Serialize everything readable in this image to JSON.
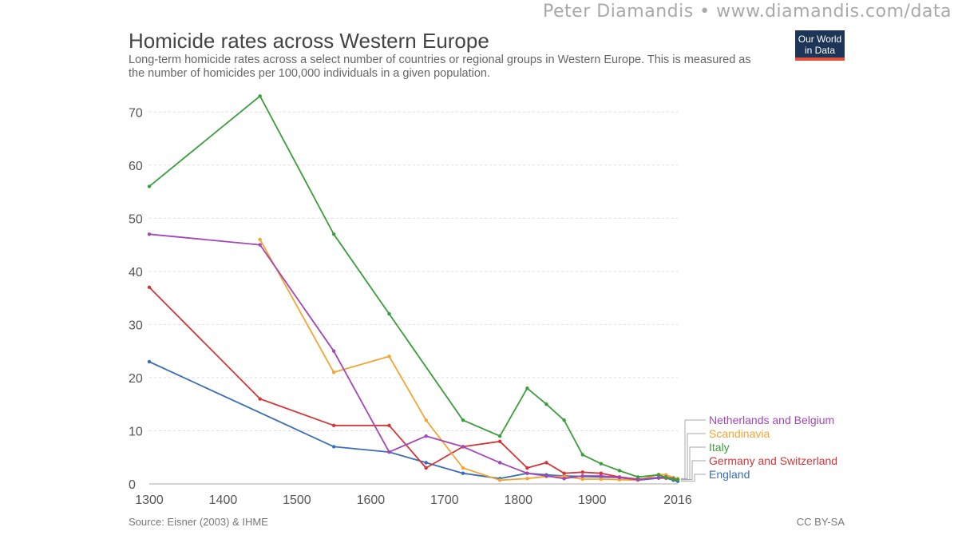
{
  "watermark": "Peter Diamandis  •  www.diamandis.com/data",
  "header": {
    "title": "Homicide rates across Western Europe",
    "subtitle": "Long-term homicide rates across a select number of countries or regional groups in Western Europe. This is measured as the number of homicides per 100,000 individuals in a given population.",
    "logo_line1": "Our World",
    "logo_line2": "in Data"
  },
  "footer": {
    "source": "Source: Eisner (2003) & IHME",
    "license": "CC BY-SA"
  },
  "chart_data": {
    "type": "line",
    "title": "Homicide rates across Western Europe",
    "xlabel": "",
    "ylabel": "",
    "xlim": [
      1300,
      2016
    ],
    "ylim": [
      0,
      75
    ],
    "x_ticks": [
      1300,
      1400,
      1500,
      1600,
      1700,
      1800,
      1900,
      2016
    ],
    "y_ticks": [
      0,
      10,
      20,
      30,
      40,
      50,
      60,
      70
    ],
    "grid": "horizontal dashed",
    "legend": "right, end-of-line labels",
    "series": [
      {
        "name": "Netherlands and Belgium",
        "color": "#a346b8",
        "x": [
          1300,
          1450,
          1550,
          1625,
          1675,
          1725,
          1775,
          1812,
          1838,
          1862,
          1887,
          1912,
          1937,
          1962,
          1990,
          2000,
          2010,
          2016
        ],
        "y": [
          47,
          45,
          25,
          6,
          9,
          7,
          4,
          2,
          1.5,
          1,
          1.5,
          1.5,
          1.2,
          0.8,
          1.2,
          1.3,
          1,
          0.8
        ]
      },
      {
        "name": "Scandinavia",
        "color": "#f2a532",
        "x": [
          1450,
          1550,
          1625,
          1675,
          1725,
          1775,
          1812,
          1838,
          1862,
          1887,
          1912,
          1937,
          1962,
          1990,
          2000,
          2010,
          2016
        ],
        "y": [
          46,
          21,
          24,
          12,
          3,
          0.7,
          1,
          1.4,
          1.4,
          0.9,
          0.9,
          0.8,
          0.7,
          1.8,
          1.7,
          1.2,
          1
        ]
      },
      {
        "name": "Italy",
        "color": "#3a9e3a",
        "x": [
          1300,
          1450,
          1550,
          1625,
          1725,
          1775,
          1812,
          1838,
          1862,
          1887,
          1912,
          1937,
          1962,
          1990,
          2000,
          2010,
          2016
        ],
        "y": [
          56,
          73,
          47,
          32,
          12,
          9,
          18,
          15,
          12,
          5.5,
          3.8,
          2.5,
          1.3,
          1.7,
          1.2,
          0.9,
          0.8
        ]
      },
      {
        "name": "Germany and Switzerland",
        "color": "#d23638",
        "x": [
          1300,
          1450,
          1550,
          1625,
          1675,
          1725,
          1775,
          1812,
          1838,
          1862,
          1887,
          1912,
          1937,
          1962,
          1990,
          2000,
          2010,
          2016
        ],
        "y": [
          37,
          16,
          11,
          11,
          3,
          7,
          8,
          3,
          4,
          2,
          2.2,
          2,
          1.3,
          0.9,
          1.2,
          1.1,
          0.9,
          0.8
        ]
      },
      {
        "name": "England",
        "color": "#3a6db8",
        "x": [
          1300,
          1550,
          1625,
          1675,
          1725,
          1775,
          1812,
          1838,
          1862,
          1887,
          1912,
          1937,
          1962,
          1990,
          2000,
          2010,
          2016
        ],
        "y": [
          23,
          7,
          6,
          4,
          2,
          1,
          2,
          1.7,
          1.5,
          1.4,
          1.3,
          1.2,
          0.7,
          1.1,
          1.1,
          0.7,
          0.5
        ]
      }
    ]
  }
}
